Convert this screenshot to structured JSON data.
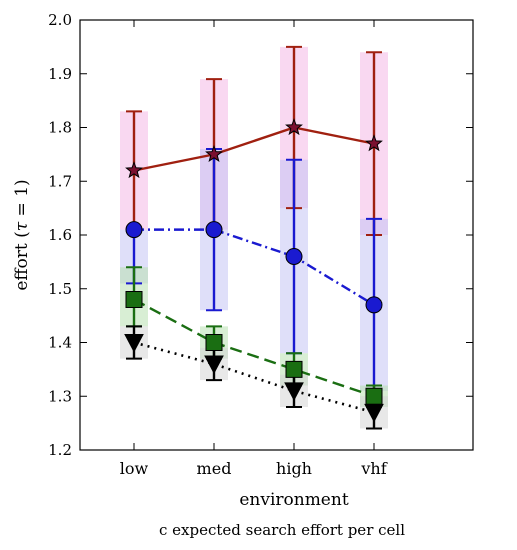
{
  "chart_data": {
    "type": "line",
    "categories": [
      "low",
      "med",
      "high",
      "vhf"
    ],
    "xlabel": "environment",
    "ylabel_main": "effort (",
    "ylabel_tau": "τ",
    "ylabel_rest": " = 1)",
    "caption": "c  expected search effort per cell",
    "ylim": [
      1.2,
      2.0
    ],
    "yticks": [
      1.2,
      1.3,
      1.4,
      1.5,
      1.6,
      1.7,
      1.8,
      1.9,
      2.0
    ],
    "ytick_labels": [
      "1.2",
      "1.3",
      "1.4",
      "1.5",
      "1.6",
      "1.7",
      "1.8",
      "1.9",
      "2.0"
    ],
    "grid": false,
    "series": [
      {
        "marker": "star",
        "linestyle": "solid",
        "color": "#a02010",
        "fill": "#7a1030",
        "band": "#f4b8e6",
        "values": [
          1.72,
          1.75,
          1.8,
          1.77
        ],
        "lower": [
          1.61,
          1.61,
          1.65,
          1.6
        ],
        "upper": [
          1.83,
          1.89,
          1.95,
          1.94
        ]
      },
      {
        "marker": "circle",
        "linestyle": "dashdot",
        "color": "#1a1ad0",
        "fill": "#1a1ad0",
        "band": "#c4c4f4",
        "values": [
          1.61,
          1.61,
          1.56,
          1.47
        ],
        "lower": [
          1.51,
          1.46,
          1.38,
          1.31
        ],
        "upper": [
          1.61,
          1.76,
          1.74,
          1.63
        ]
      },
      {
        "marker": "square",
        "linestyle": "dashed",
        "color": "#1a6e12",
        "fill": "#1a6e12",
        "band": "#b8e0b0",
        "values": [
          1.48,
          1.4,
          1.35,
          1.3
        ],
        "lower": [
          1.43,
          1.37,
          1.32,
          1.28
        ],
        "upper": [
          1.54,
          1.43,
          1.38,
          1.32
        ]
      },
      {
        "marker": "triangle-down",
        "linestyle": "dotted",
        "color": "#000000",
        "fill": "#000000",
        "band": "#d6d6d6",
        "values": [
          1.4,
          1.36,
          1.31,
          1.27
        ],
        "lower": [
          1.37,
          1.33,
          1.28,
          1.24
        ],
        "upper": [
          1.43,
          1.39,
          1.34,
          1.3
        ]
      }
    ]
  }
}
